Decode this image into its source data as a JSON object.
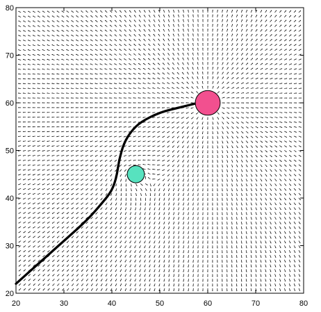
{
  "chart_data": {
    "type": "scatter",
    "title": "",
    "xlabel": "",
    "ylabel": "",
    "xlim": [
      20,
      80
    ],
    "ylim": [
      20,
      80
    ],
    "x_ticks": [
      20,
      30,
      40,
      50,
      60,
      70,
      80
    ],
    "y_ticks": [
      20,
      30,
      40,
      50,
      60,
      70,
      80
    ],
    "x_tick_labels": [
      "20",
      "30",
      "40",
      "50",
      "60",
      "70",
      "80"
    ],
    "y_tick_labels": [
      "20",
      "30",
      "40",
      "50",
      "60",
      "70",
      "80"
    ],
    "grid": false,
    "legend": "none",
    "vector_field": {
      "x_range": [
        20,
        80
      ],
      "y_range": [
        20,
        80
      ],
      "spacing": 1,
      "color": "#000000",
      "description_source": "arrows point away from the magenta obstacle and swirl around the green point"
    },
    "obstacles": [
      {
        "shape": "circle",
        "center": [
          60,
          60
        ],
        "radius": 2.6,
        "fill": "#f2508f"
      },
      {
        "shape": "circle",
        "center": [
          45,
          45
        ],
        "radius": 1.8,
        "fill": "#57e2bf"
      }
    ],
    "path": {
      "color": "#000000",
      "points": [
        [
          20,
          22
        ],
        [
          30,
          31
        ],
        [
          35,
          35.5
        ],
        [
          38,
          39
        ],
        [
          40,
          41.5
        ],
        [
          41,
          44.5
        ],
        [
          41.5,
          48
        ],
        [
          42.5,
          51.5
        ],
        [
          44,
          54
        ],
        [
          46,
          56
        ],
        [
          50,
          58
        ],
        [
          54,
          59
        ],
        [
          58,
          60
        ]
      ]
    }
  }
}
